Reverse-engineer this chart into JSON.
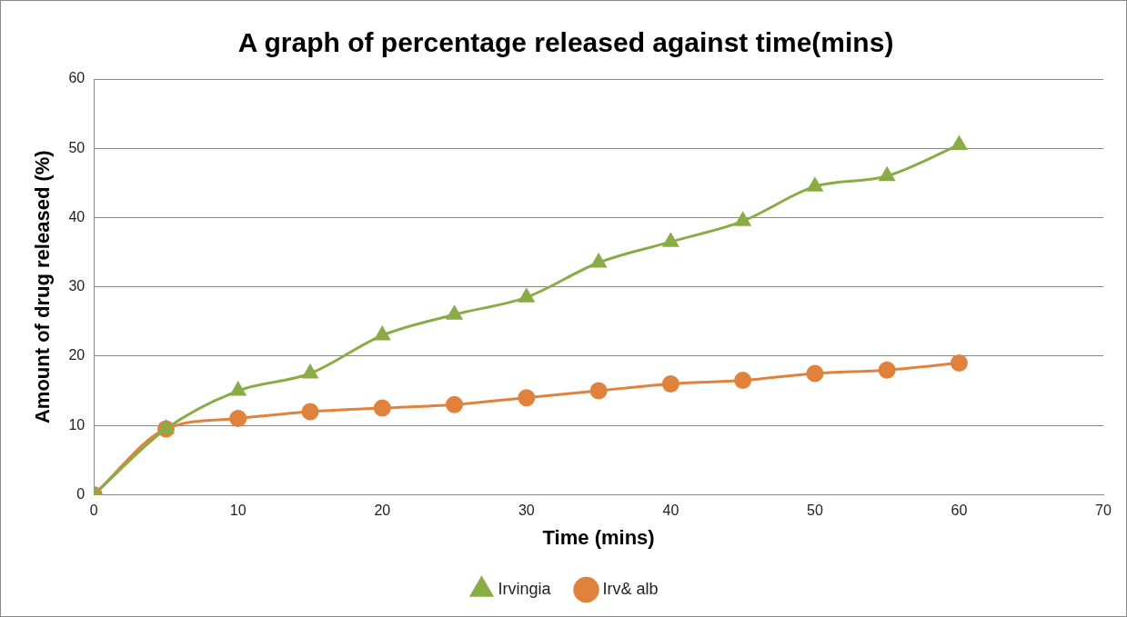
{
  "chart_data": {
    "type": "line",
    "title": "A graph of percentage released against time(mins)",
    "xlabel": "Time (mins)",
    "ylabel": "Amount of drug released (%)",
    "x": [
      0,
      5,
      10,
      15,
      20,
      25,
      30,
      35,
      40,
      45,
      50,
      55,
      60
    ],
    "xlim": [
      0,
      70
    ],
    "xticks": [
      0,
      10,
      20,
      30,
      40,
      50,
      60,
      70
    ],
    "ylim": [
      0,
      60
    ],
    "yticks": [
      0,
      10,
      20,
      30,
      40,
      50,
      60
    ],
    "grid": "y",
    "legend": "bottom",
    "series": [
      {
        "name": "Irvingia",
        "color": "#8aac46",
        "marker": "triangle",
        "values": [
          0,
          9.5,
          15,
          17.5,
          23,
          26,
          28.5,
          33.5,
          36.5,
          39.5,
          44.5,
          46,
          50.5
        ]
      },
      {
        "name": "Irv& alb",
        "color": "#e0823b",
        "marker": "circle",
        "values": [
          0,
          9.5,
          11,
          12,
          12.5,
          13,
          14,
          15,
          16,
          16.5,
          17.5,
          18,
          19
        ]
      }
    ]
  }
}
